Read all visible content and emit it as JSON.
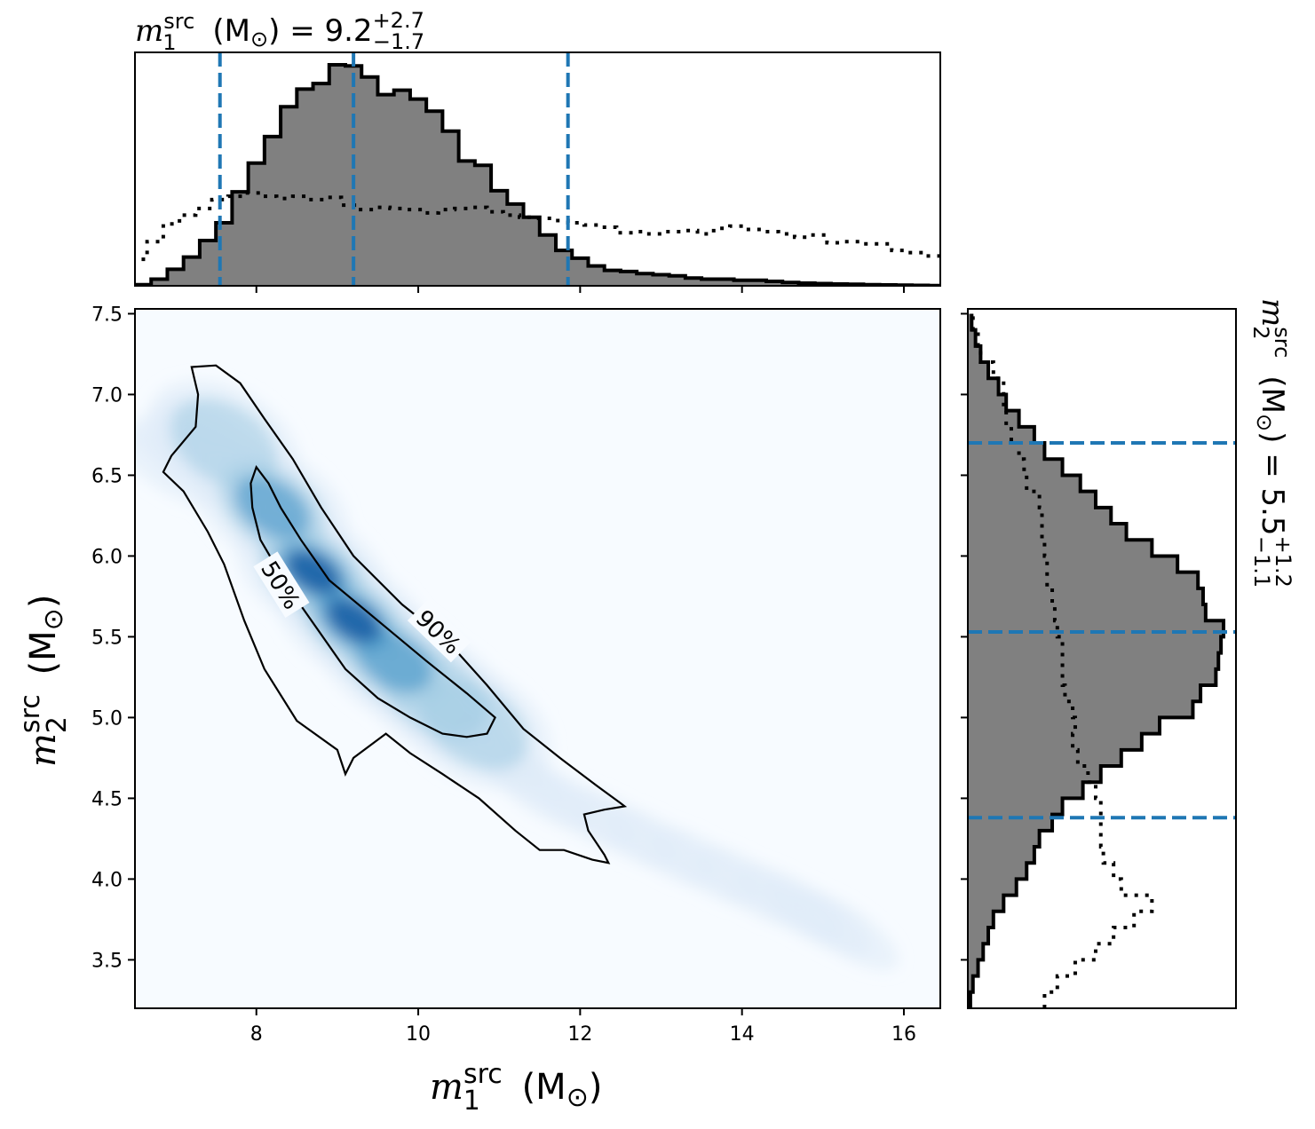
{
  "chart_data": {
    "type": "corner-plot",
    "top_title": {
      "symbol": "m",
      "sub": "1",
      "sup": "src",
      "unit": "(M",
      "sun": "⊙",
      "close": ")",
      "eq": "= 9.2",
      "err_plus": "+2.7",
      "err_minus": "−1.7"
    },
    "right_title": {
      "symbol": "m",
      "sub": "2",
      "sup": "src",
      "unit": "(M",
      "sun": "⊙",
      "close": ")",
      "eq": "= 5.5",
      "err_plus": "+1.2",
      "err_minus": "−1.1"
    },
    "xlabel": {
      "symbol": "m",
      "sub": "1",
      "sup": "src",
      "unit": "(M",
      "sun": "⊙",
      "close": ")"
    },
    "ylabel": {
      "symbol": "m",
      "sub": "2",
      "sup": "src",
      "unit": "(M",
      "sun": "⊙",
      "close": ")"
    },
    "xlim": [
      6.5,
      16.45
    ],
    "ylim": [
      3.2,
      7.53
    ],
    "xticks": [
      "8",
      "10",
      "12",
      "14",
      "16"
    ],
    "yticks": [
      "3.5",
      "4.0",
      "4.5",
      "5.0",
      "5.5",
      "6.0",
      "6.5",
      "7.0",
      "7.5"
    ],
    "contour_labels": [
      "50%",
      "90%"
    ],
    "colors": {
      "posterior_fill": "#808080",
      "quantile_line": "#1f77b4",
      "density_peak": "#08306b",
      "density_low": "#f7fbff"
    },
    "m1_quantiles": [
      7.55,
      9.2,
      11.85
    ],
    "m2_quantiles": [
      4.38,
      5.53,
      6.7
    ],
    "m1_posterior_hist": {
      "bin_edges": [
        6.5,
        6.7,
        6.9,
        7.1,
        7.3,
        7.5,
        7.7,
        7.9,
        8.1,
        8.3,
        8.5,
        8.7,
        8.9,
        9.1,
        9.3,
        9.5,
        9.7,
        9.9,
        10.1,
        10.3,
        10.5,
        10.7,
        10.9,
        11.1,
        11.3,
        11.5,
        11.7,
        11.9,
        12.1,
        12.3,
        12.5,
        12.7,
        12.9,
        13.1,
        13.3,
        13.5,
        13.7,
        13.9,
        14.1,
        14.3,
        14.5,
        14.7,
        14.9,
        15.1,
        15.3,
        15.5,
        15.7,
        15.9,
        16.1,
        16.3,
        16.45
      ],
      "density": [
        0.005,
        0.03,
        0.075,
        0.13,
        0.205,
        0.285,
        0.425,
        0.555,
        0.675,
        0.81,
        0.89,
        0.915,
        1.0,
        0.995,
        0.945,
        0.865,
        0.885,
        0.845,
        0.79,
        0.7,
        0.565,
        0.545,
        0.43,
        0.37,
        0.31,
        0.23,
        0.16,
        0.125,
        0.09,
        0.07,
        0.065,
        0.055,
        0.05,
        0.045,
        0.035,
        0.03,
        0.03,
        0.025,
        0.025,
        0.02,
        0.015,
        0.012,
        0.01,
        0.008,
        0.007,
        0.005,
        0.004,
        0.003,
        0.002,
        0.001
      ]
    },
    "m1_prior_hist": {
      "x": [
        6.55,
        6.75,
        6.95,
        7.15,
        7.35,
        7.55,
        7.75,
        7.95,
        8.15,
        8.35,
        8.55,
        8.75,
        8.95,
        9.15,
        9.35,
        9.55,
        9.75,
        9.95,
        10.15,
        10.35,
        10.55,
        10.75,
        10.95,
        11.15,
        11.35,
        11.55,
        11.75,
        11.95,
        12.15,
        12.35,
        12.55,
        12.75,
        12.95,
        13.15,
        13.35,
        13.55,
        13.75,
        13.95,
        14.15,
        14.35,
        14.55,
        14.75,
        14.95,
        15.15,
        15.35,
        15.55,
        15.75,
        15.95,
        16.15,
        16.35
      ],
      "density": [
        0.12,
        0.2,
        0.28,
        0.32,
        0.35,
        0.39,
        0.405,
        0.42,
        0.405,
        0.395,
        0.405,
        0.39,
        0.4,
        0.365,
        0.345,
        0.355,
        0.35,
        0.345,
        0.33,
        0.345,
        0.35,
        0.355,
        0.335,
        0.32,
        0.31,
        0.305,
        0.295,
        0.285,
        0.275,
        0.265,
        0.24,
        0.245,
        0.235,
        0.245,
        0.25,
        0.235,
        0.26,
        0.27,
        0.255,
        0.245,
        0.235,
        0.22,
        0.23,
        0.195,
        0.2,
        0.19,
        0.19,
        0.16,
        0.15,
        0.135
      ]
    },
    "m2_posterior_hist": {
      "bin_edges": [
        3.2,
        3.3,
        3.4,
        3.5,
        3.6,
        3.7,
        3.8,
        3.9,
        4.0,
        4.1,
        4.2,
        4.3,
        4.4,
        4.5,
        4.6,
        4.7,
        4.8,
        4.9,
        5.0,
        5.1,
        5.2,
        5.3,
        5.4,
        5.5,
        5.6,
        5.7,
        5.8,
        5.9,
        6.0,
        6.1,
        6.2,
        6.3,
        6.4,
        6.5,
        6.6,
        6.7,
        6.8,
        6.9,
        7.0,
        7.1,
        7.2,
        7.3,
        7.4,
        7.5
      ],
      "density": [
        0.01,
        0.02,
        0.04,
        0.06,
        0.08,
        0.1,
        0.14,
        0.19,
        0.23,
        0.26,
        0.28,
        0.33,
        0.37,
        0.45,
        0.52,
        0.6,
        0.68,
        0.75,
        0.88,
        0.91,
        0.97,
        0.98,
        0.99,
        1.0,
        0.93,
        0.92,
        0.9,
        0.82,
        0.72,
        0.62,
        0.56,
        0.5,
        0.44,
        0.37,
        0.3,
        0.26,
        0.2,
        0.15,
        0.12,
        0.08,
        0.05,
        0.03,
        0.015
      ]
    },
    "m2_prior_hist": {
      "y": [
        3.25,
        3.35,
        3.45,
        3.55,
        3.65,
        3.75,
        3.85,
        3.95,
        4.05,
        4.15,
        4.25,
        4.35,
        4.45,
        4.55,
        4.65,
        4.75,
        4.85,
        4.95,
        5.05,
        5.15,
        5.25,
        5.35,
        5.45,
        5.55,
        5.65,
        5.75,
        5.85,
        5.95,
        6.05,
        6.15,
        6.25,
        6.35,
        6.45,
        6.55,
        6.65,
        6.75,
        6.85,
        6.95,
        7.05,
        7.15,
        7.25,
        7.35,
        7.45
      ],
      "density": [
        0.3,
        0.35,
        0.42,
        0.5,
        0.57,
        0.65,
        0.72,
        0.6,
        0.57,
        0.53,
        0.52,
        0.52,
        0.52,
        0.5,
        0.47,
        0.43,
        0.41,
        0.42,
        0.41,
        0.38,
        0.37,
        0.37,
        0.37,
        0.35,
        0.34,
        0.33,
        0.31,
        0.31,
        0.3,
        0.29,
        0.29,
        0.28,
        0.23,
        0.22,
        0.2,
        0.17,
        0.15,
        0.14,
        0.14,
        0.1,
        0.05,
        0.04,
        0.02
      ]
    },
    "density_2d": {
      "ridge": [
        [
          6.9,
          6.55
        ],
        [
          7.5,
          6.75
        ],
        [
          8.2,
          6.25
        ],
        [
          8.7,
          5.85
        ],
        [
          9.3,
          5.5
        ],
        [
          9.9,
          5.25
        ],
        [
          10.6,
          4.95
        ],
        [
          11.5,
          4.55
        ],
        [
          13.0,
          4.2
        ],
        [
          14.6,
          3.85
        ],
        [
          15.6,
          3.6
        ]
      ],
      "peak": [
        9.0,
        5.7
      ]
    },
    "contour_50": [
      [
        8.0,
        6.55
      ],
      [
        8.15,
        6.45
      ],
      [
        8.3,
        6.3
      ],
      [
        8.55,
        6.1
      ],
      [
        8.9,
        5.85
      ],
      [
        9.5,
        5.6
      ],
      [
        10.1,
        5.35
      ],
      [
        10.6,
        5.15
      ],
      [
        10.95,
        5.0
      ],
      [
        10.85,
        4.9
      ],
      [
        10.6,
        4.88
      ],
      [
        10.3,
        4.9
      ],
      [
        9.9,
        5.0
      ],
      [
        9.5,
        5.12
      ],
      [
        9.1,
        5.3
      ],
      [
        8.75,
        5.55
      ],
      [
        8.4,
        5.8
      ],
      [
        8.05,
        6.1
      ],
      [
        7.95,
        6.3
      ],
      [
        7.93,
        6.45
      ],
      [
        8.0,
        6.55
      ]
    ],
    "contour_90": [
      [
        7.2,
        7.17
      ],
      [
        7.5,
        7.18
      ],
      [
        7.8,
        7.07
      ],
      [
        8.1,
        6.85
      ],
      [
        8.45,
        6.6
      ],
      [
        8.8,
        6.3
      ],
      [
        9.2,
        6.0
      ],
      [
        9.8,
        5.7
      ],
      [
        10.35,
        5.48
      ],
      [
        10.85,
        5.2
      ],
      [
        11.3,
        4.93
      ],
      [
        11.75,
        4.75
      ],
      [
        12.2,
        4.58
      ],
      [
        12.5,
        4.47
      ],
      [
        12.55,
        4.45
      ],
      [
        12.3,
        4.43
      ],
      [
        12.05,
        4.4
      ],
      [
        12.1,
        4.3
      ],
      [
        12.3,
        4.15
      ],
      [
        12.35,
        4.1
      ],
      [
        12.15,
        4.12
      ],
      [
        11.8,
        4.18
      ],
      [
        11.5,
        4.18
      ],
      [
        11.2,
        4.3
      ],
      [
        10.75,
        4.5
      ],
      [
        10.3,
        4.65
      ],
      [
        9.9,
        4.78
      ],
      [
        9.6,
        4.9
      ],
      [
        9.2,
        4.75
      ],
      [
        9.1,
        4.65
      ],
      [
        9.0,
        4.8
      ],
      [
        8.5,
        4.98
      ],
      [
        8.1,
        5.3
      ],
      [
        7.85,
        5.6
      ],
      [
        7.6,
        5.95
      ],
      [
        7.4,
        6.15
      ],
      [
        7.1,
        6.4
      ],
      [
        6.85,
        6.52
      ],
      [
        6.95,
        6.62
      ],
      [
        7.25,
        6.8
      ],
      [
        7.28,
        7.0
      ],
      [
        7.2,
        7.17
      ]
    ]
  }
}
